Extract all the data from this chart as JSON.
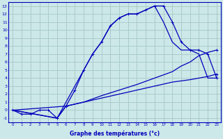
{
  "xlabel": "Graphe des températures (°c)",
  "bg_color": "#cce8e8",
  "grid_color": "#aacccc",
  "line_color": "#0000bb",
  "ylim": [
    -1.5,
    13.5
  ],
  "xlim": [
    -0.5,
    23.5
  ],
  "yticks": [
    -1,
    0,
    1,
    2,
    3,
    4,
    5,
    6,
    7,
    8,
    9,
    10,
    11,
    12,
    13
  ],
  "xticks": [
    0,
    1,
    2,
    3,
    4,
    5,
    6,
    7,
    8,
    9,
    10,
    11,
    12,
    13,
    14,
    15,
    16,
    17,
    18,
    19,
    20,
    21,
    22,
    23
  ],
  "curve1": {
    "x": [
      0,
      1,
      2,
      3,
      4,
      5,
      6,
      7,
      8,
      9,
      10,
      11,
      12,
      13,
      14,
      15,
      16,
      17,
      18,
      19,
      20,
      21,
      22,
      23
    ],
    "y": [
      0,
      -0.5,
      -0.5,
      0,
      0,
      -1,
      0.5,
      2.5,
      5.0,
      7.0,
      8.5,
      10.5,
      11.5,
      12.0,
      12.0,
      12.5,
      13.0,
      13.0,
      11.0,
      8.5,
      7.5,
      7.5,
      7.0,
      4.0
    ]
  },
  "curve2": {
    "x": [
      0,
      5,
      6,
      7,
      8,
      9,
      10,
      11,
      12,
      13,
      14,
      15,
      16,
      17,
      18,
      19,
      20,
      21,
      22,
      23
    ],
    "y": [
      0,
      -1,
      1.0,
      3.0,
      5.0,
      7.0,
      8.5,
      10.5,
      11.5,
      12.0,
      12.0,
      12.5,
      13.0,
      11.0,
      8.5,
      7.5,
      7.5,
      7.0,
      4.0,
      4.0
    ]
  },
  "curve3": {
    "x": [
      0,
      6,
      8,
      10,
      12,
      14,
      16,
      18,
      19,
      20,
      21,
      22,
      23
    ],
    "y": [
      0,
      0.5,
      1.0,
      1.8,
      2.5,
      3.2,
      4.0,
      4.8,
      5.5,
      6.0,
      6.8,
      7.2,
      7.5
    ]
  },
  "curve4": {
    "x": [
      0,
      5,
      6,
      8,
      10,
      12,
      14,
      16,
      18,
      20,
      22,
      23
    ],
    "y": [
      0,
      -1,
      0.5,
      1.0,
      1.5,
      2.0,
      2.5,
      3.0,
      3.5,
      3.8,
      4.2,
      4.5
    ]
  }
}
